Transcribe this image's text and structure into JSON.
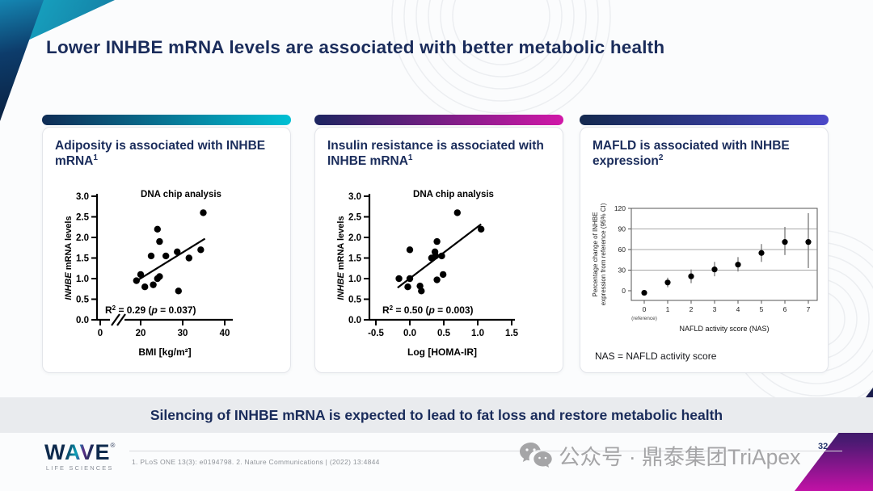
{
  "slide": {
    "title": "Lower INHBE mRNA levels are associated with better metabolic health",
    "banner": "Silencing of INHBE mRNA is expected to lead to fat loss and restore metabolic health",
    "page_number": "32",
    "citation": "1. PLoS ONE 13(3): e0194798. 2. Nature Communications | (2022) 13:4844",
    "watermark": "公众号 · 鼎泰集团TriApex",
    "logo": {
      "name": "WAVE",
      "registered": "®",
      "subtitle": "LIFE SCIENCES"
    }
  },
  "colors": {
    "navy": "#1a2c5b",
    "bar1_gradient": [
      "#0f2c55",
      "#00c0d4"
    ],
    "bar2_gradient": [
      "#1c2560",
      "#d118a8"
    ],
    "bar3_gradient": [
      "#14294f",
      "#4b48c8"
    ],
    "banner_bg": "#e9ebee",
    "dot_color": "#000000"
  },
  "panels": [
    {
      "title": "Adiposity is associated with INHBE mRNA",
      "sup": "1"
    },
    {
      "title": "Insulin resistance is associated with INHBE mRNA",
      "sup": "1"
    },
    {
      "title": "MAFLD is associated with INHBE expression",
      "sup": "2"
    }
  ],
  "chart_data": [
    {
      "type": "scatter",
      "title": "DNA chip analysis",
      "xlabel": "BMI [kg/m²]",
      "ylabel_italic": "INHBE",
      "ylabel_rest": " mRNA levels",
      "x_ticks": [
        0,
        20,
        30,
        40
      ],
      "x_axis_break": true,
      "y_ticks": [
        0.0,
        0.5,
        1.0,
        1.5,
        2.0,
        2.5,
        3.0
      ],
      "ylim": [
        0,
        3
      ],
      "r_squared": "0.29",
      "p_value": "0.037",
      "points": [
        [
          19,
          0.95
        ],
        [
          20,
          1.1
        ],
        [
          21,
          0.8
        ],
        [
          22.5,
          1.55
        ],
        [
          23,
          0.85
        ],
        [
          24,
          1.0
        ],
        [
          24.5,
          1.05
        ],
        [
          24,
          2.2
        ],
        [
          24.5,
          1.9
        ],
        [
          26,
          1.55
        ],
        [
          28.7,
          1.65
        ],
        [
          29,
          0.7
        ],
        [
          31.5,
          1.5
        ],
        [
          34.3,
          1.7
        ],
        [
          34.9,
          2.6
        ]
      ],
      "trend": [
        [
          18.8,
          0.93
        ],
        [
          35.3,
          1.97
        ]
      ]
    },
    {
      "type": "scatter",
      "title": "DNA chip analysis",
      "xlabel": "Log [HOMA-IR]",
      "ylabel_italic": "INHBE",
      "ylabel_rest": " mRNA levels",
      "x_ticks": [
        -0.5,
        0.0,
        0.5,
        1.0,
        1.5
      ],
      "xlim": [
        -0.5,
        1.5
      ],
      "y_ticks": [
        0.0,
        0.5,
        1.0,
        1.5,
        2.0,
        2.5,
        3.0
      ],
      "ylim": [
        0,
        3
      ],
      "r_squared": "0.50",
      "p_value": "0.003",
      "points": [
        [
          -0.16,
          1.0
        ],
        [
          -0.03,
          0.8
        ],
        [
          0.0,
          1.0
        ],
        [
          0.0,
          1.7
        ],
        [
          0.15,
          0.82
        ],
        [
          0.17,
          0.7
        ],
        [
          0.32,
          1.5
        ],
        [
          0.37,
          1.65
        ],
        [
          0.38,
          1.55
        ],
        [
          0.4,
          1.9
        ],
        [
          0.4,
          0.97
        ],
        [
          0.47,
          1.55
        ],
        [
          0.49,
          1.1
        ],
        [
          0.7,
          2.6
        ],
        [
          1.05,
          2.2
        ]
      ],
      "trend": [
        [
          -0.18,
          0.78
        ],
        [
          1.05,
          2.32
        ]
      ]
    },
    {
      "type": "scatter-error",
      "xlabel": "NAFLD activity score (NAS)",
      "ylabel_line1": "Percentage change of INHBE",
      "ylabel_line2": "expression from reference (95% CI)",
      "x_ticks": [
        0,
        1,
        2,
        3,
        4,
        5,
        6,
        7
      ],
      "reference_label": "(reference)",
      "y_ticks": [
        0,
        30,
        60,
        90,
        120
      ],
      "gridlines": [
        30,
        60,
        90
      ],
      "ylim": [
        0,
        120
      ],
      "points": [
        {
          "x": 0,
          "y": -3,
          "lo": -7,
          "hi": 1
        },
        {
          "x": 1,
          "y": 12,
          "lo": 5,
          "hi": 19
        },
        {
          "x": 2,
          "y": 21,
          "lo": 11,
          "hi": 31
        },
        {
          "x": 3,
          "y": 31,
          "lo": 21,
          "hi": 42
        },
        {
          "x": 4,
          "y": 38,
          "lo": 28,
          "hi": 49
        },
        {
          "x": 5,
          "y": 55,
          "lo": 42,
          "hi": 68
        },
        {
          "x": 6,
          "y": 71,
          "lo": 52,
          "hi": 93
        },
        {
          "x": 7,
          "y": 71,
          "lo": 33,
          "hi": 113
        }
      ],
      "note": "NAS = NAFLD activity score"
    }
  ]
}
